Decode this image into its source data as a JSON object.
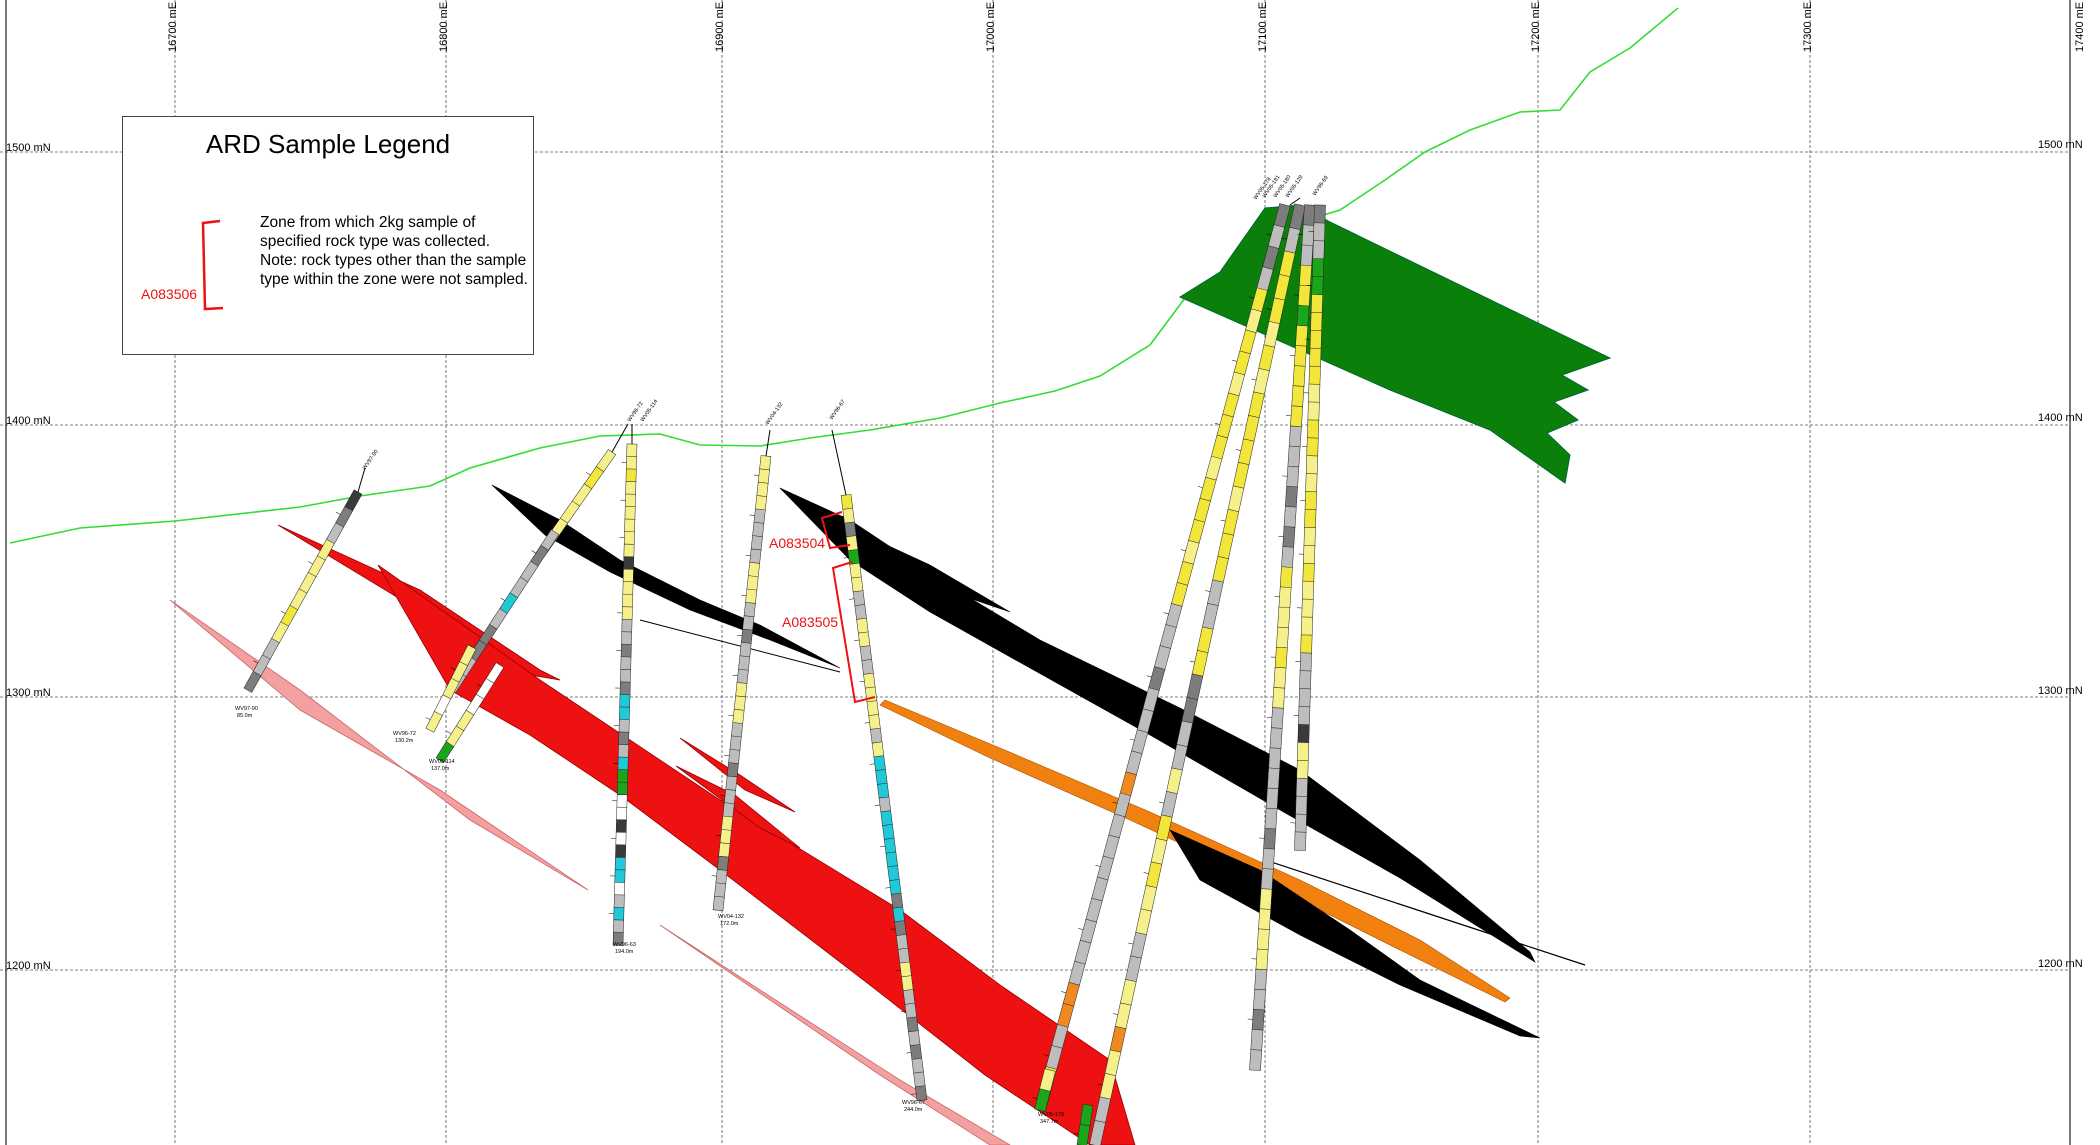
{
  "legend": {
    "title": "ARD Sample Legend",
    "description": "Zone from which 2kg sample of specified rock type was collected. Note: rock types other than the sample type within the zone were not sampled.",
    "example_code": "A083506",
    "bracket_color": "#ee1111"
  },
  "grid": {
    "eastings": [
      "16700 mE",
      "16800 mE",
      "16900 mE",
      "17000 mE",
      "17100 mE",
      "17200 mE",
      "17300 mE",
      "17400 mE"
    ],
    "elevations_left": [
      "1500 mN",
      "1400 mN",
      "1300 mN",
      "1200 mN"
    ],
    "elevations_right": [
      "1500 mN",
      "1400 mN",
      "1300 mN",
      "1200 mN"
    ]
  },
  "samples": [
    {
      "code": "A083504"
    },
    {
      "code": "A083505"
    }
  ],
  "drillholes": [
    {
      "name": "WV97-90",
      "depth": "85.0m"
    },
    {
      "name": "WV96-72",
      "depth": "130.2m"
    },
    {
      "name": "WV05-114",
      "depth": "137.0m"
    },
    {
      "name": "WV96-63",
      "depth": "194.0m"
    },
    {
      "name": "WV04-132",
      "depth": "172.0m"
    },
    {
      "name": "WV96-67",
      "depth": "244.0m"
    },
    {
      "name": "WV05-178",
      "depth": "347.7m"
    }
  ],
  "colors": {
    "topography": "#33dd33",
    "green_unit": "#0a800a",
    "red_unit": "#ee1111",
    "pink_unit": "#f2a0a0",
    "black_unit": "#000000",
    "orange_unit": "#f08010"
  }
}
